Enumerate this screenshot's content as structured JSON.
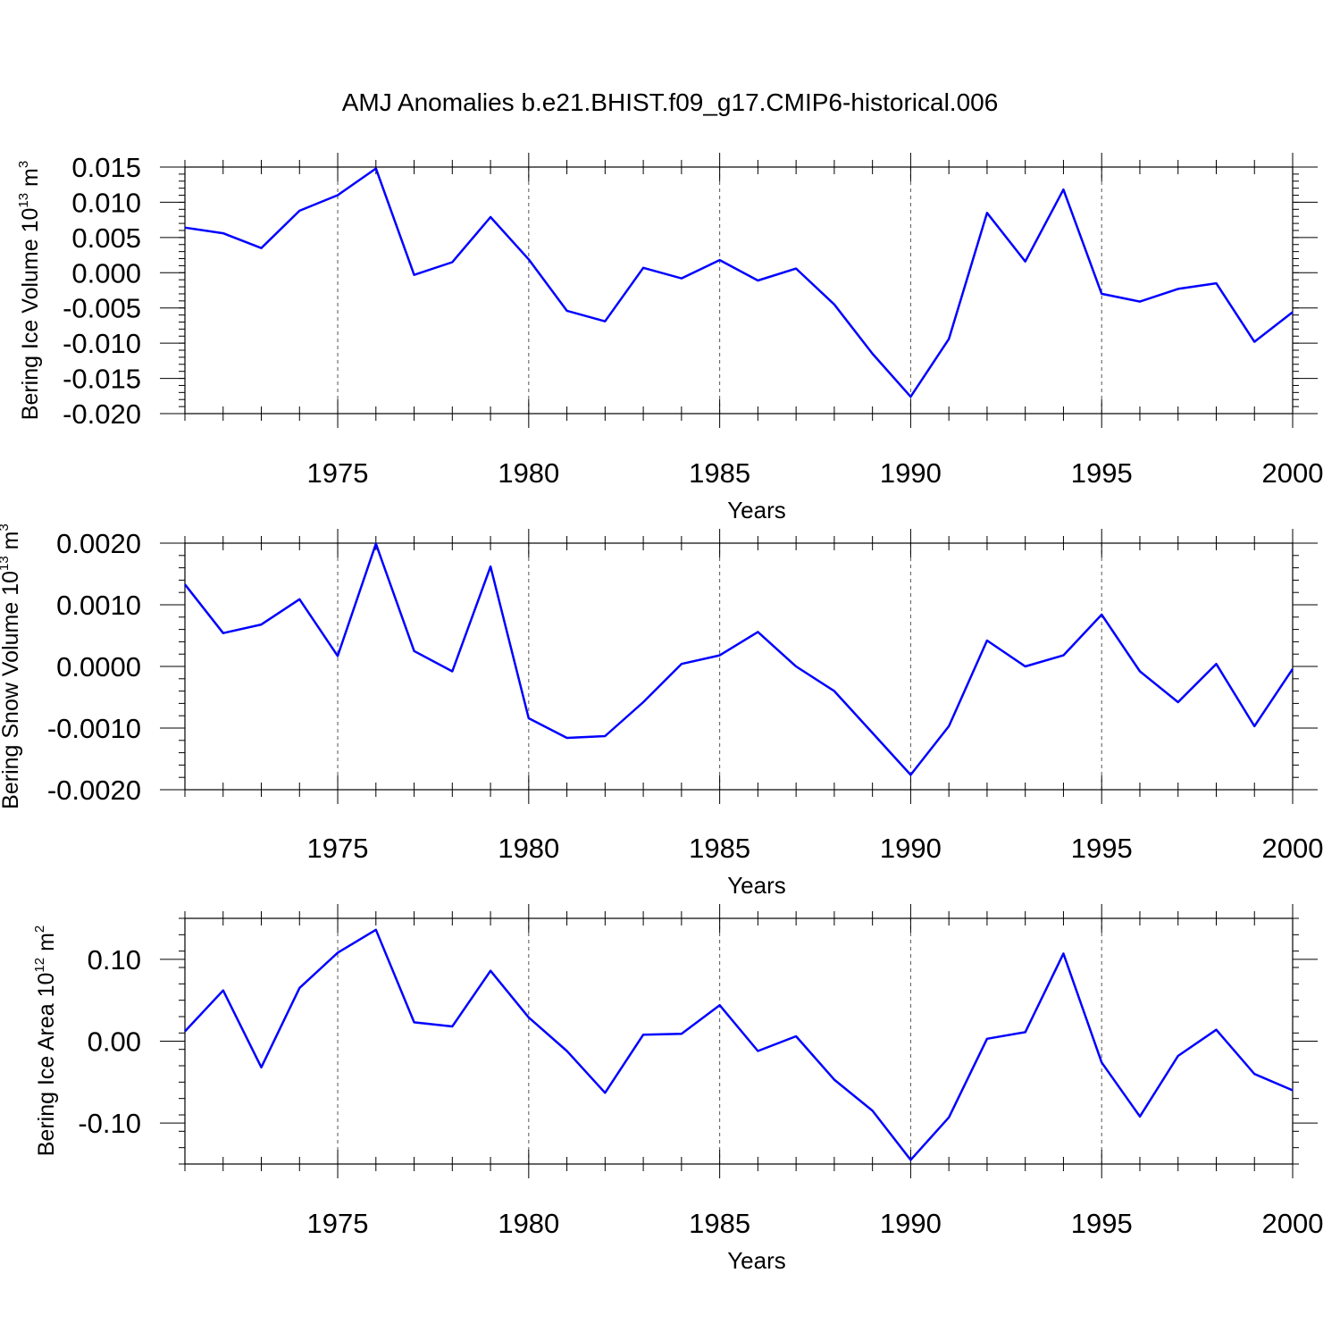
{
  "figure_title": "AMJ Anomalies b.e21.BHIST.f09_g17.CMIP6-historical.006",
  "chart_data": [
    {
      "type": "line",
      "title": "",
      "xlabel": "Years",
      "ylabel": {
        "main": "Bering Ice Volume 10",
        "exp": "13",
        "unit": " m",
        "unit_exp": "3"
      },
      "xlim": [
        1971,
        2000
      ],
      "ylim": [
        -0.02,
        0.015
      ],
      "x_ticks": [
        1975,
        1980,
        1985,
        1990,
        1995,
        2000
      ],
      "y_ticks": [
        -0.02,
        -0.015,
        -0.01,
        -0.005,
        0.0,
        0.005,
        0.01,
        0.015
      ],
      "y_tick_labels": [
        "-0.020",
        "-0.015",
        "-0.010",
        "-0.005",
        "0.000",
        "0.005",
        "0.010",
        "0.015"
      ],
      "grid": "dashed vertical at major x ticks",
      "color": "#0000ff",
      "x": [
        1971,
        1972,
        1973,
        1974,
        1975,
        1976,
        1977,
        1978,
        1979,
        1980,
        1981,
        1982,
        1983,
        1984,
        1985,
        1986,
        1987,
        1988,
        1989,
        1990,
        1991,
        1992,
        1993,
        1994,
        1995,
        1996,
        1997,
        1998,
        1999,
        2000
      ],
      "values": [
        0.0064,
        0.0056,
        0.0035,
        0.0088,
        0.011,
        0.0148,
        -0.0003,
        0.0015,
        0.0079,
        0.0019,
        -0.0054,
        -0.0069,
        0.0007,
        -0.0008,
        0.0018,
        -0.0011,
        0.0006,
        -0.0045,
        -0.0115,
        -0.0176,
        -0.0094,
        0.0085,
        0.0016,
        0.0118,
        -0.003,
        -0.0041,
        -0.0023,
        -0.0015,
        -0.0098,
        -0.0056
      ]
    },
    {
      "type": "line",
      "title": "",
      "xlabel": "Years",
      "ylabel": {
        "main": "Bering Snow Volume 10",
        "exp": "13",
        "unit": " m",
        "unit_exp": "3"
      },
      "xlim": [
        1971,
        2000
      ],
      "ylim": [
        -0.002,
        0.002
      ],
      "x_ticks": [
        1975,
        1980,
        1985,
        1990,
        1995,
        2000
      ],
      "y_ticks": [
        -0.002,
        -0.001,
        0.0,
        0.001,
        0.002
      ],
      "y_tick_labels": [
        "-0.0020",
        "-0.0010",
        "0.0000",
        "0.0010",
        "0.0020"
      ],
      "grid": "dashed vertical at major x ticks",
      "color": "#0000ff",
      "x": [
        1971,
        1972,
        1973,
        1974,
        1975,
        1976,
        1977,
        1978,
        1979,
        1980,
        1981,
        1982,
        1983,
        1984,
        1985,
        1986,
        1987,
        1988,
        1989,
        1990,
        1991,
        1992,
        1993,
        1994,
        1995,
        1996,
        1997,
        1998,
        1999,
        2000
      ],
      "values": [
        0.00133,
        0.00054,
        0.00068,
        0.00109,
        0.00017,
        0.00199,
        0.00025,
        -8e-05,
        0.00162,
        -0.00084,
        -0.00116,
        -0.00113,
        -0.00058,
        4e-05,
        0.00018,
        0.00056,
        0.0,
        -0.0004,
        -0.00108,
        -0.00176,
        -0.00097,
        0.00042,
        0.0,
        0.00018,
        0.00084,
        -8e-05,
        -0.00058,
        4e-05,
        -0.00097,
        -4e-05
      ]
    },
    {
      "type": "line",
      "title": "",
      "xlabel": "Years",
      "ylabel": {
        "main": "Bering Ice Area 10",
        "exp": "12",
        "unit": " m",
        "unit_exp": "2"
      },
      "xlim": [
        1971,
        2000
      ],
      "ylim": [
        -0.15,
        0.15
      ],
      "x_ticks": [
        1975,
        1980,
        1985,
        1990,
        1995,
        2000
      ],
      "y_ticks": [
        -0.1,
        0.0,
        0.1
      ],
      "y_tick_labels": [
        "-0.10",
        "0.00",
        "0.10"
      ],
      "grid": "dashed vertical at major x ticks",
      "color": "#0000ff",
      "x": [
        1971,
        1972,
        1973,
        1974,
        1975,
        1976,
        1977,
        1978,
        1979,
        1980,
        1981,
        1982,
        1983,
        1984,
        1985,
        1986,
        1987,
        1988,
        1989,
        1990,
        1991,
        1992,
        1993,
        1994,
        1995,
        1996,
        1997,
        1998,
        1999,
        2000
      ],
      "values": [
        0.012,
        0.062,
        -0.032,
        0.065,
        0.108,
        0.136,
        0.023,
        0.018,
        0.086,
        0.029,
        -0.012,
        -0.063,
        0.008,
        0.009,
        0.044,
        -0.012,
        0.006,
        -0.047,
        -0.085,
        -0.145,
        -0.093,
        0.003,
        0.011,
        0.107,
        -0.026,
        -0.092,
        -0.018,
        0.014,
        -0.04,
        -0.06
      ]
    }
  ]
}
